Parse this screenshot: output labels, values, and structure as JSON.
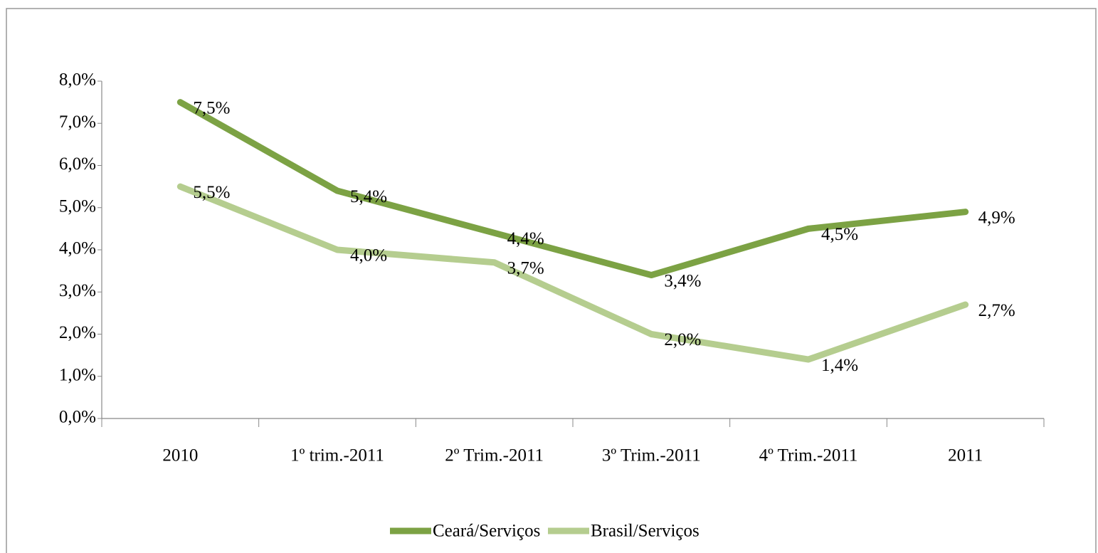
{
  "chart_data": {
    "type": "line",
    "categories": [
      "2010",
      "1º trim.-2011",
      "2º Trim.-2011",
      "3º Trim.-2011",
      "4º Trim.-2011",
      "2011"
    ],
    "series": [
      {
        "name": "Ceará/Serviços",
        "color": "#7ca244",
        "values": [
          7.5,
          5.4,
          4.4,
          3.4,
          4.5,
          4.9
        ],
        "value_labels": [
          "7,5%",
          "5,4%",
          "4,4%",
          "3,4%",
          "4,5%",
          "4,9%"
        ]
      },
      {
        "name": "Brasil/Serviços",
        "color": "#b5cd8f",
        "values": [
          5.5,
          4.0,
          3.7,
          2.0,
          1.4,
          2.7
        ],
        "value_labels": [
          "5,5%",
          "4,0%",
          "3,7%",
          "2,0%",
          "1,4%",
          "2,7%"
        ]
      }
    ],
    "ylim": [
      0,
      8
    ],
    "yticks": [
      {
        "value": 0,
        "label": "0,0%"
      },
      {
        "value": 1,
        "label": "1,0%"
      },
      {
        "value": 2,
        "label": "2,0%"
      },
      {
        "value": 3,
        "label": "3,0%"
      },
      {
        "value": 4,
        "label": "4,0%"
      },
      {
        "value": 5,
        "label": "5,0%"
      },
      {
        "value": 6,
        "label": "6,0%"
      },
      {
        "value": 7,
        "label": "7,0%"
      },
      {
        "value": 8,
        "label": "8,0%"
      }
    ],
    "grid": false,
    "legend": "bottom"
  }
}
